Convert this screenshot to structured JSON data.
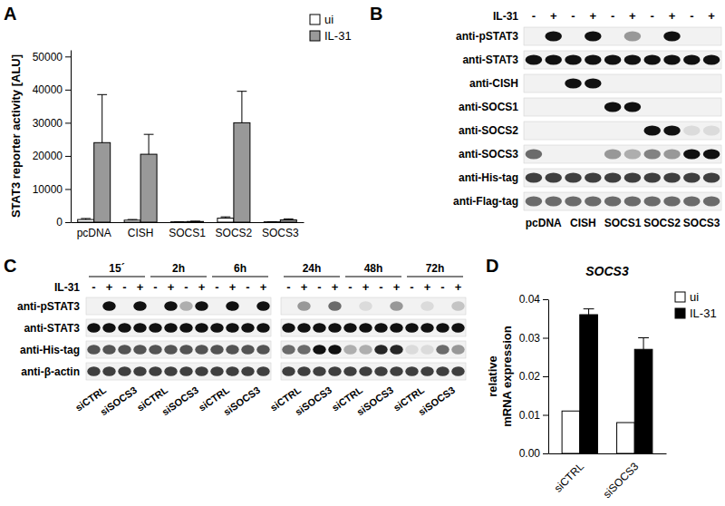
{
  "chart_data": [
    {
      "type": "bar",
      "panel_label": "A",
      "ylabel": [
        "STAT3 reporter activity [ALU]"
      ],
      "categories": [
        "pcDNA",
        "CISH",
        "SOCS1",
        "SOCS2",
        "SOCS3"
      ],
      "series": [
        {
          "name": "ui",
          "color": "#ffffff",
          "values": [
            800,
            600,
            100,
            1200,
            100
          ],
          "errors": [
            300,
            200,
            50,
            400,
            50
          ]
        },
        {
          "name": "IL-31",
          "color": "#999999",
          "values": [
            24000,
            20500,
            200,
            30000,
            700
          ],
          "errors": [
            14500,
            6000,
            100,
            9500,
            300
          ]
        }
      ],
      "ylim": [
        0,
        52000
      ],
      "yticks": [
        0,
        10000,
        20000,
        30000,
        40000,
        50000
      ],
      "legend": "top-right"
    },
    {
      "type": "bar",
      "panel_label": "D",
      "title": "SOCS3",
      "ylabel": [
        "relative",
        "mRNA expression"
      ],
      "categories": [
        "siCTRL",
        "siSOCS3"
      ],
      "series": [
        {
          "name": "ui",
          "color": "#ffffff",
          "values": [
            0.011,
            0.008
          ]
        },
        {
          "name": "IL-31",
          "color": "#000000",
          "values": [
            0.036,
            0.027
          ],
          "errors": [
            0.0015,
            0.003
          ]
        }
      ],
      "ylim": [
        0,
        0.04
      ],
      "yticks": [
        {
          "value": 0,
          "label": "0.00"
        },
        0.01,
        0.02,
        0.03,
        0.04
      ],
      "legend": "top-right"
    }
  ],
  "blots": [
    {
      "panel_label": "B",
      "treatment": "IL-31",
      "lane_signs": [
        "-",
        "+",
        "-",
        "+",
        "-",
        "+",
        "-",
        "+",
        "-",
        "+"
      ],
      "groups": [
        "pcDNA",
        "CISH",
        "SOCS1",
        "SOCS2",
        "SOCS3"
      ],
      "rows": [
        {
          "label": "anti-pSTAT3",
          "bands": [
            0,
            1,
            0,
            1,
            0,
            0.4,
            0,
            1,
            0,
            0
          ]
        },
        {
          "label": "anti-STAT3",
          "bands": [
            1,
            1,
            1,
            1,
            1,
            1,
            1,
            1,
            1,
            1
          ]
        },
        {
          "label": "anti-CISH",
          "bands": [
            0,
            0,
            1,
            1,
            0,
            0,
            0,
            0,
            0,
            0
          ]
        },
        {
          "label": "anti-SOCS1",
          "bands": [
            0,
            0,
            0,
            0,
            1,
            1,
            0,
            0,
            0,
            0
          ]
        },
        {
          "label": "anti-SOCS2",
          "bands": [
            0,
            0,
            0,
            0,
            0,
            0,
            1,
            1,
            0.1,
            0.1
          ]
        },
        {
          "label": "anti-SOCS3",
          "bands": [
            0.6,
            0,
            0,
            0,
            0.4,
            0.3,
            0.5,
            0.4,
            1,
            1
          ]
        },
        {
          "label": "anti-His-tag",
          "bands": [
            0.8,
            0.8,
            0.8,
            0.8,
            0.8,
            0.8,
            0.8,
            0.8,
            0.8,
            0.8
          ]
        },
        {
          "label": "anti-Flag-tag",
          "bands": [
            0.6,
            0.6,
            0.6,
            0.6,
            0.6,
            0.6,
            0.6,
            0.6,
            0.6,
            0.6
          ]
        }
      ]
    },
    {
      "panel_label": "C",
      "treatment": "IL-31",
      "times": [
        "15´",
        "2h",
        "6h",
        "24h",
        "48h",
        "72h"
      ],
      "lane_signs": [
        "-",
        "+",
        "-",
        "+",
        "-",
        "+",
        "-",
        "+",
        "-",
        "+",
        "-",
        "+",
        "-",
        "+",
        "-",
        "+",
        "-",
        "+",
        "-",
        "+",
        "-",
        "+",
        "-",
        "+"
      ],
      "conditions": [
        "siCTRL",
        "siSOCS3",
        "siCTRL",
        "siSOCS3",
        "siCTRL",
        "siSOCS3",
        "siCTRL",
        "siSOCS3",
        "siCTRL",
        "siSOCS3",
        "siCTRL",
        "siSOCS3"
      ],
      "rows": [
        {
          "label": "anti-pSTAT3",
          "bands": [
            0,
            1,
            0,
            1,
            0,
            1,
            0.3,
            1,
            0,
            1,
            0,
            1,
            0,
            0.4,
            0,
            0.6,
            0,
            0.1,
            0,
            0.4,
            0,
            0.1,
            0,
            0.2
          ]
        },
        {
          "label": "anti-STAT3",
          "bands": [
            1,
            1,
            1,
            1,
            1,
            1,
            1,
            1,
            1,
            1,
            1,
            1,
            1,
            1,
            1,
            1,
            1,
            1,
            1,
            1,
            1,
            1,
            1,
            1
          ]
        },
        {
          "label": "anti-His-tag",
          "bands": [
            0.7,
            0.7,
            0.7,
            0.7,
            0.7,
            0.7,
            0.7,
            0.7,
            0.7,
            0.7,
            0.7,
            0.7,
            0.6,
            0.6,
            1,
            1,
            0.3,
            0.3,
            0.9,
            0.9,
            0.1,
            0.1,
            0.6,
            0.4
          ]
        },
        {
          "label": "anti-β-actin",
          "bands": [
            0.8,
            0.8,
            0.8,
            0.8,
            0.8,
            0.8,
            0.8,
            0.8,
            0.8,
            0.8,
            0.8,
            0.8,
            0.8,
            0.8,
            0.8,
            0.8,
            0.8,
            0.8,
            0.8,
            0.8,
            0.8,
            0.8,
            0.8,
            0.8
          ]
        }
      ]
    }
  ]
}
